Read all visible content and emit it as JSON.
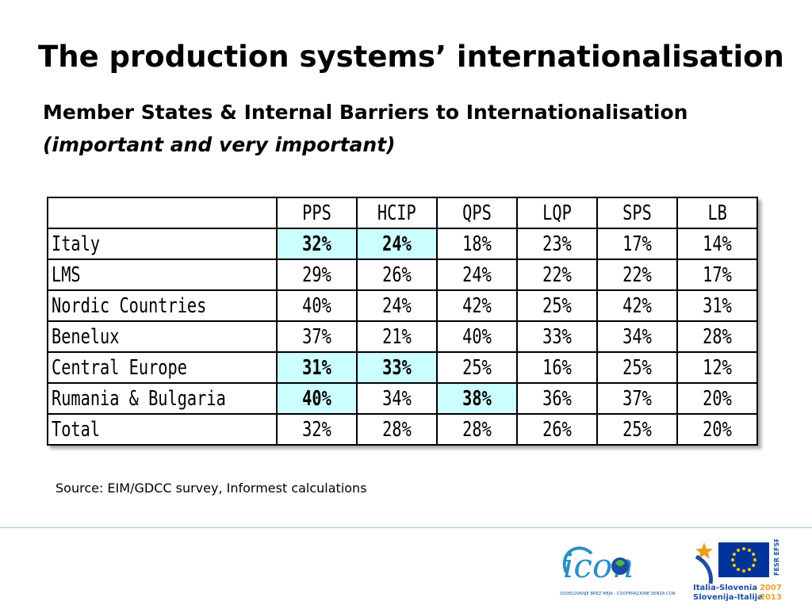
{
  "slide": {
    "title": "The production systems’ internationalisation",
    "subtitle": "Member States & Internal Barriers to Internationalisation",
    "subtitle_note": "(important and very important)",
    "source": "Source: EIM/GDCC survey, Informest calculations"
  },
  "table": {
    "columns": [
      "PPS",
      "HCIP",
      "QPS",
      "LQP",
      "SPS",
      "LB"
    ],
    "rows": [
      {
        "label": "Italy",
        "values": [
          "32%",
          "24%",
          "18%",
          "23%",
          "17%",
          "14%"
        ],
        "highlight": [
          0,
          1
        ]
      },
      {
        "label": "LMS",
        "values": [
          "29%",
          "26%",
          "24%",
          "22%",
          "22%",
          "17%"
        ],
        "highlight": []
      },
      {
        "label": "Nordic Countries",
        "values": [
          "40%",
          "24%",
          "42%",
          "25%",
          "42%",
          "31%"
        ],
        "highlight": []
      },
      {
        "label": "Benelux",
        "values": [
          "37%",
          "21%",
          "40%",
          "33%",
          "34%",
          "28%"
        ],
        "highlight": []
      },
      {
        "label": "Central Europe",
        "values": [
          "31%",
          "33%",
          "25%",
          "16%",
          "25%",
          "12%"
        ],
        "highlight": [
          0,
          1
        ]
      },
      {
        "label": "Rumania & Bulgaria",
        "values": [
          "40%",
          "34%",
          "38%",
          "36%",
          "37%",
          "20%"
        ],
        "highlight": [
          0,
          2
        ]
      },
      {
        "label": "Total",
        "values": [
          "32%",
          "28%",
          "28%",
          "26%",
          "25%",
          "20%"
        ],
        "highlight": []
      }
    ],
    "highlight_color": "#ccffff"
  },
  "footer": {
    "logo_icon": {
      "name": "icon-project-logo",
      "wordmark": "icon",
      "tagline": "SODELOVANJE BREZ MEJA · COOPERAZIONE SENZA CONFINI",
      "colors": [
        "#2a8fc8",
        "#4ab848",
        "#1a4f9c"
      ]
    },
    "logo_eu": {
      "name": "interreg-eu-logo",
      "fund_label": "FESR EFSR",
      "program_it": "Italia-Slovenia",
      "program_sl": "Slovenija-Italija",
      "year_start": "2007",
      "year_end": "2013",
      "colors": [
        "#003399",
        "#ffcc00",
        "#1a4f9c",
        "#e8a020"
      ]
    }
  }
}
